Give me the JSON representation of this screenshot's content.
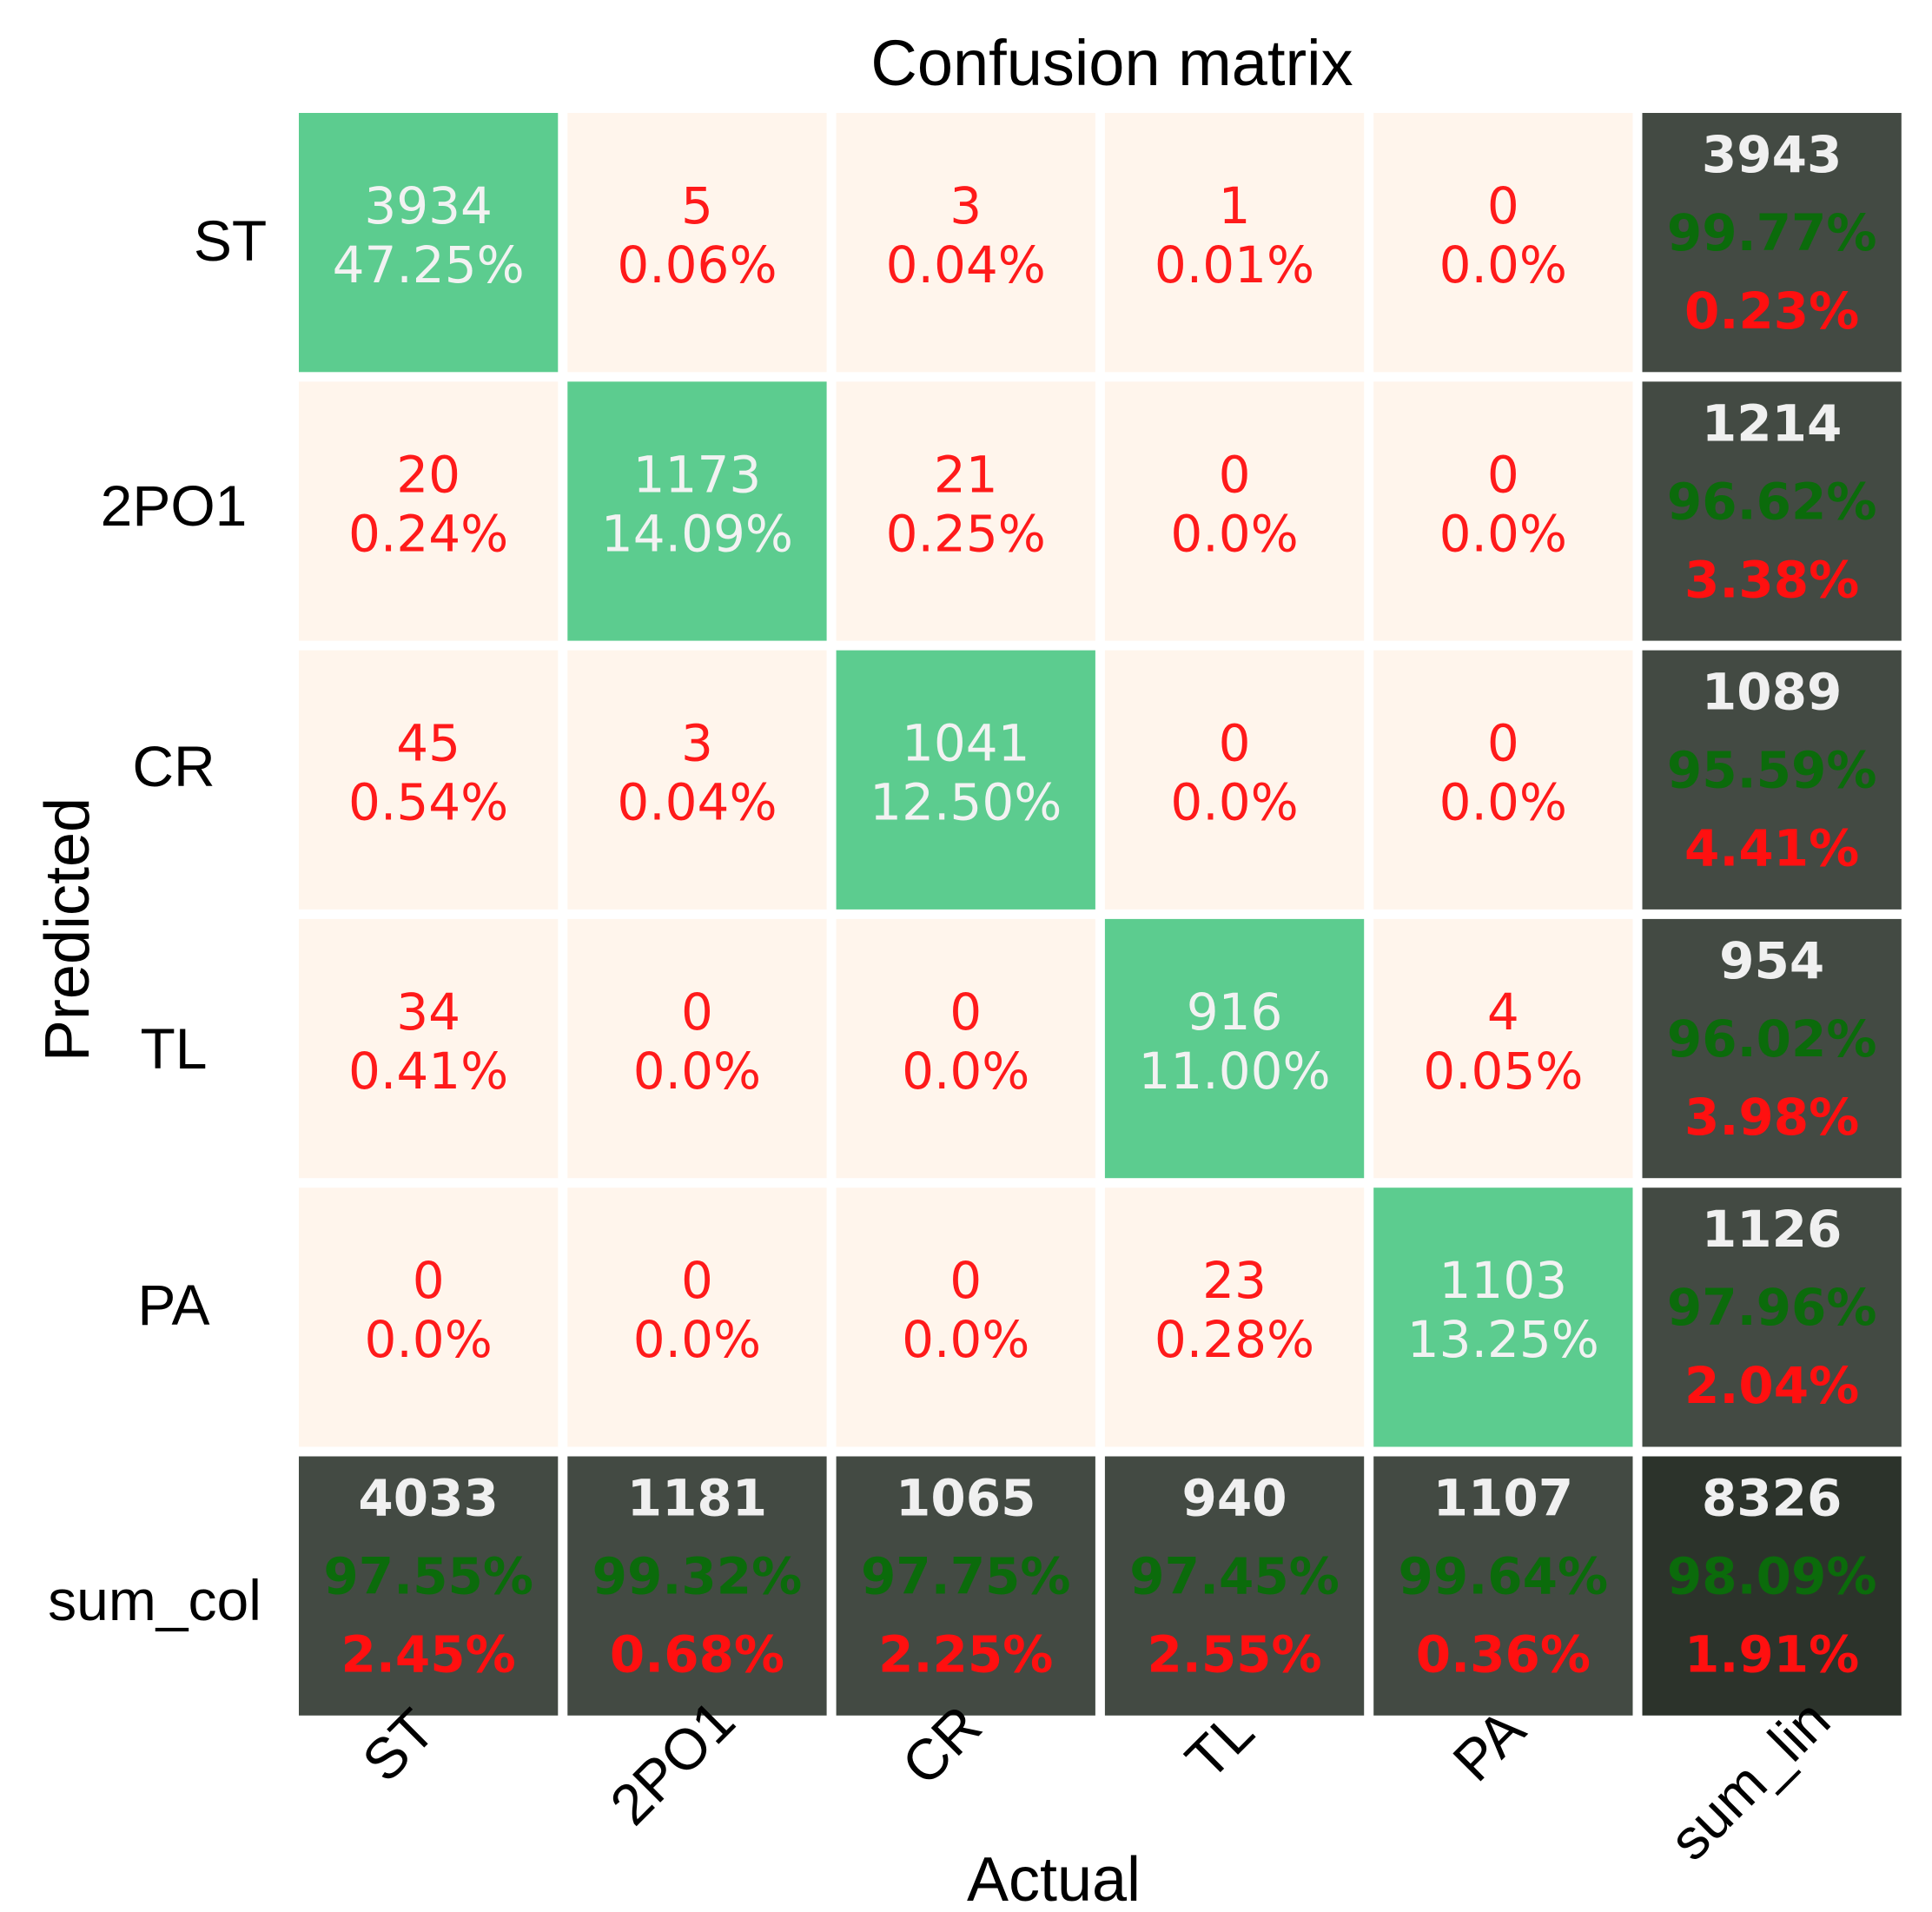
{
  "chart_data": {
    "type": "heatmap",
    "title": "Confusion matrix",
    "xlabel": "Actual",
    "ylabel": "Predicted",
    "col_labels": [
      "ST",
      "2PO1",
      "CR",
      "TL",
      "PA",
      "sum_lin"
    ],
    "row_labels": [
      "ST",
      "2PO1",
      "CR",
      "TL",
      "PA",
      "sum_col"
    ],
    "matrix": [
      {
        "counts": [
          3934,
          5,
          3,
          1,
          0
        ],
        "percents": [
          "47.25%",
          "0.06%",
          "0.04%",
          "0.01%",
          "0.0%"
        ]
      },
      {
        "counts": [
          20,
          1173,
          21,
          0,
          0
        ],
        "percents": [
          "0.24%",
          "14.09%",
          "0.25%",
          "0.0%",
          "0.0%"
        ]
      },
      {
        "counts": [
          45,
          3,
          1041,
          0,
          0
        ],
        "percents": [
          "0.54%",
          "0.04%",
          "12.50%",
          "0.0%",
          "0.0%"
        ]
      },
      {
        "counts": [
          34,
          0,
          0,
          916,
          4
        ],
        "percents": [
          "0.41%",
          "0.0%",
          "0.0%",
          "11.00%",
          "0.05%"
        ]
      },
      {
        "counts": [
          0,
          0,
          0,
          23,
          1103
        ],
        "percents": [
          "0.0%",
          "0.0%",
          "0.0%",
          "0.28%",
          "13.25%"
        ]
      }
    ],
    "row_sums": [
      {
        "total": 3943,
        "correct": "99.77%",
        "error": "0.23%"
      },
      {
        "total": 1214,
        "correct": "96.62%",
        "error": "3.38%"
      },
      {
        "total": 1089,
        "correct": "95.59%",
        "error": "4.41%"
      },
      {
        "total": 954,
        "correct": "96.02%",
        "error": "3.98%"
      },
      {
        "total": 1126,
        "correct": "97.96%",
        "error": "2.04%"
      }
    ],
    "col_sums": [
      {
        "total": 4033,
        "correct": "97.55%",
        "error": "2.45%"
      },
      {
        "total": 1181,
        "correct": "99.32%",
        "error": "0.68%"
      },
      {
        "total": 1065,
        "correct": "97.75%",
        "error": "2.25%"
      },
      {
        "total": 940,
        "correct": "97.45%",
        "error": "2.55%"
      },
      {
        "total": 1107,
        "correct": "99.64%",
        "error": "0.36%"
      }
    ],
    "overall": {
      "total": 8326,
      "correct": "98.09%",
      "error": "1.91%"
    }
  },
  "colors": {
    "diagonal": "#5ccc8f",
    "offdiagonal": "#fff5ec",
    "sum_cell": "#434a43",
    "overall_cell": "#2c332b",
    "diag_text": "#f2f2f2",
    "offdiag_text": "#ff1a1a",
    "sum_total_text": "#f0f0f0",
    "correct_text": "#0b6b0b",
    "error_text": "#ff1010",
    "label_text": "#000000"
  }
}
